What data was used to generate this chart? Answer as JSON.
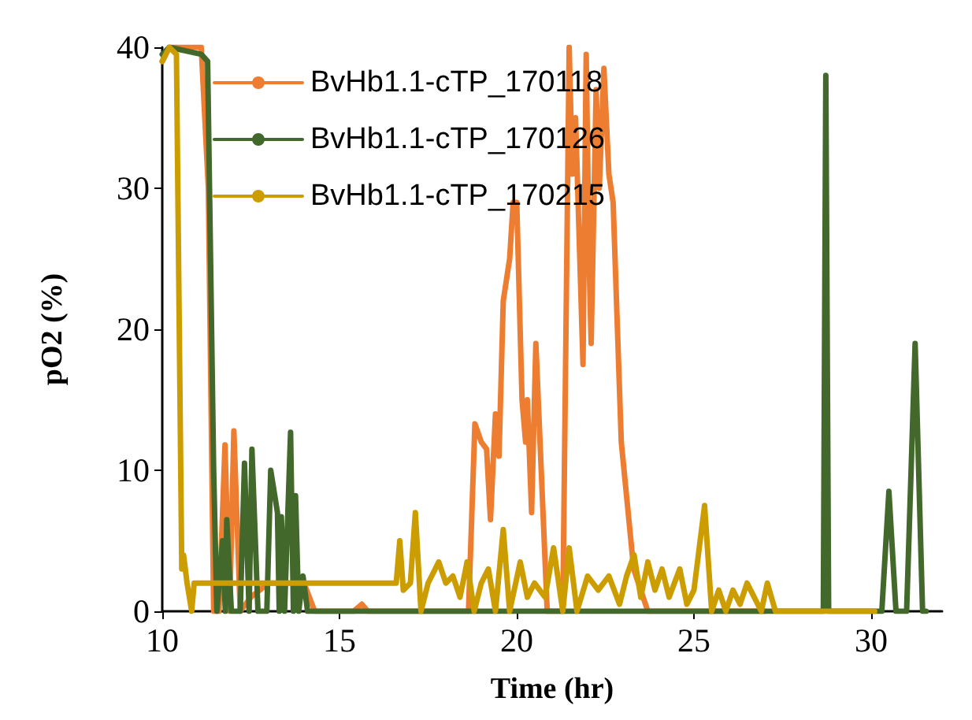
{
  "chart_data": {
    "type": "line",
    "xlabel": "Time (hr)",
    "ylabel": "pO2 (%)",
    "xlim": [
      10,
      32
    ],
    "xticks": [
      10,
      15,
      20,
      25,
      30
    ],
    "ylim": [
      0,
      40
    ],
    "yticks": [
      0,
      10,
      20,
      30,
      40
    ],
    "grid": false,
    "legend": "top left",
    "marker": "none",
    "line_style": "solid",
    "series": [
      {
        "name": "BvHb1.1-cTP_170118",
        "color": "#ed7d31",
        "x": [
          10,
          10.2,
          11.1,
          11.3,
          11.45,
          11.6,
          11.77,
          11.9,
          12.02,
          12.2,
          12.5,
          13,
          14,
          14.3,
          15.4,
          15.63,
          15.8,
          18.64,
          18.82,
          19,
          19.15,
          19.26,
          19.4,
          19.5,
          19.62,
          19.8,
          19.9,
          20,
          20.15,
          20.25,
          20.3,
          20.42,
          20.54,
          20.86,
          21.3,
          21.48,
          21.57,
          21.66,
          21.87,
          21.96,
          22.05,
          22.1,
          22.24,
          22.33,
          22.46,
          22.6,
          22.72,
          22.95,
          23.3,
          23.7,
          27
        ],
        "values": [
          39,
          40,
          40,
          30,
          0,
          0,
          11.8,
          0,
          12.8,
          0,
          1,
          2,
          2,
          0,
          0,
          0.5,
          0,
          0,
          13.3,
          12,
          11.5,
          6.5,
          14,
          11,
          22,
          25,
          29,
          29,
          15,
          12,
          15,
          7,
          19,
          0,
          0,
          40,
          31,
          35,
          17.5,
          39.5,
          24,
          19,
          37,
          30,
          38.5,
          31,
          29,
          12,
          3,
          0,
          0
        ]
      },
      {
        "name": "BvHb1.1-cTP_170126",
        "color": "#43682b",
        "x": [
          10,
          10.2,
          11.1,
          11.28,
          11.45,
          11.54,
          11.7,
          11.78,
          11.82,
          11.95,
          12.2,
          12.32,
          12.45,
          12.53,
          12.7,
          12.95,
          13.06,
          13.25,
          13.3,
          13.36,
          13.45,
          13.62,
          13.7,
          13.76,
          13.85,
          13.97,
          14.1,
          28.65,
          28.72,
          28.8,
          30.3,
          30.5,
          30.7,
          31.0,
          31.24,
          31.45,
          31.55
        ],
        "values": [
          39.5,
          40,
          39.5,
          39,
          10,
          0,
          5,
          0,
          6.5,
          0,
          0,
          10.5,
          0,
          11.5,
          0,
          0,
          10,
          7,
          0,
          6.7,
          0,
          12.7,
          0,
          8.2,
          0,
          2.5,
          0,
          0,
          38,
          0,
          0,
          8.5,
          0,
          0,
          19,
          0,
          0
        ]
      },
      {
        "name": "BvHb1.1-cTP_170215",
        "color": "#cc9d00",
        "x": [
          10,
          10.2,
          10.4,
          10.48,
          10.55,
          10.6,
          10.7,
          10.83,
          10.9,
          11,
          12,
          13,
          14,
          15,
          16,
          16.6,
          16.7,
          16.8,
          17,
          17.14,
          17.3,
          17.5,
          17.8,
          18,
          18.2,
          18.4,
          18.6,
          18.8,
          19,
          19.2,
          19.4,
          19.62,
          19.8,
          20.1,
          20.3,
          20.5,
          20.8,
          21.04,
          21.3,
          21.48,
          21.7,
          22,
          22.3,
          22.6,
          22.9,
          23.1,
          23.31,
          23.5,
          23.7,
          23.9,
          24.1,
          24.3,
          24.6,
          24.8,
          25,
          25.3,
          25.5,
          25.7,
          25.9,
          26.1,
          26.3,
          26.5,
          26.7,
          26.9,
          27.07,
          27.3,
          30.1
        ],
        "values": [
          39,
          40,
          39.5,
          20,
          3,
          4,
          2,
          0,
          2,
          2,
          2,
          2,
          2,
          2,
          2,
          2,
          5,
          1.5,
          2,
          7,
          0,
          2,
          3.5,
          2,
          2.5,
          1,
          3.5,
          0,
          2,
          3,
          0,
          5.8,
          0,
          3.5,
          1,
          2,
          1,
          4.5,
          0,
          4.5,
          0,
          2.5,
          1.5,
          2.5,
          0.5,
          2.5,
          4,
          1,
          3.5,
          1.5,
          3,
          1,
          3,
          0.5,
          1.5,
          7.5,
          0,
          1.5,
          0,
          1.5,
          0.5,
          2,
          1,
          0,
          2,
          0,
          0
        ]
      }
    ]
  }
}
